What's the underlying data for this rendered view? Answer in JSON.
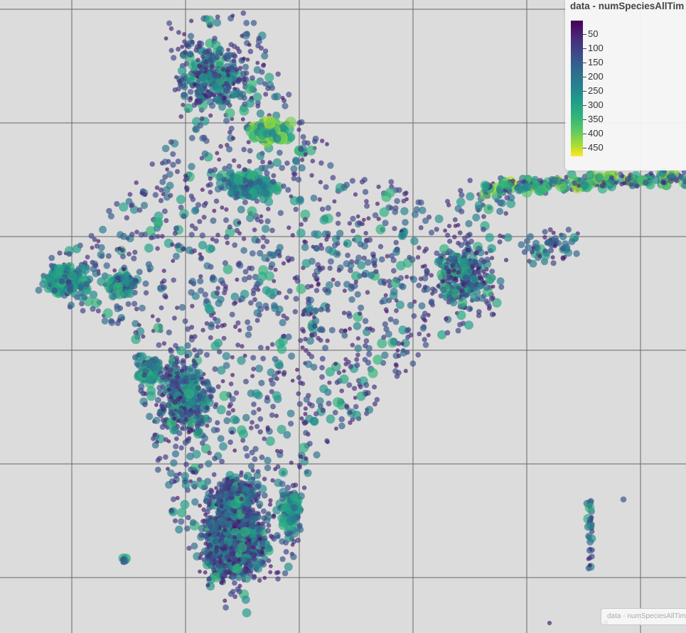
{
  "map": {
    "region": "India",
    "variable": "numSpeciesAllTime",
    "colormap": [
      "#440154",
      "#482878",
      "#3e4989",
      "#31688e",
      "#26828e",
      "#1f9e89",
      "#35b779",
      "#6ece58",
      "#b5de2b",
      "#fde725"
    ],
    "background_color": "#dcdcdc",
    "grid_color": "#666666",
    "value_range": [
      0,
      480
    ]
  },
  "legend": {
    "title": "data - numSpeciesAllTim",
    "ticks": [
      "50",
      "100",
      "150",
      "200",
      "250",
      "300",
      "350",
      "400",
      "450"
    ]
  },
  "attribution": {
    "text": "data - numSpeciesAllTim"
  }
}
